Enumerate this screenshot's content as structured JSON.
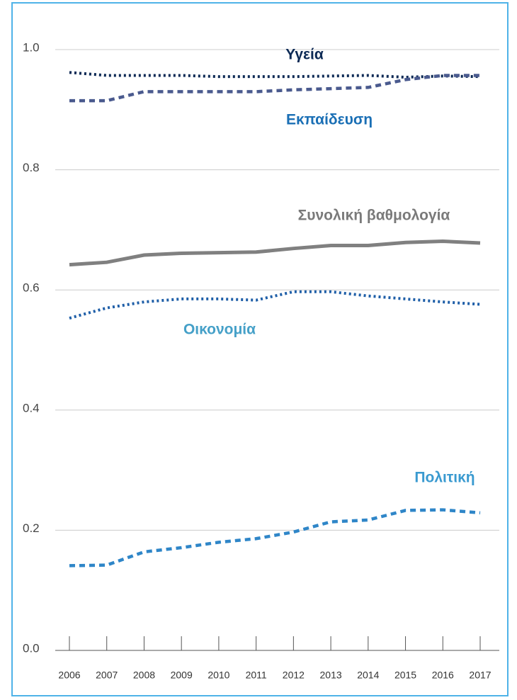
{
  "chart_data": {
    "type": "line",
    "categories": [
      "2006",
      "2007",
      "2008",
      "2009",
      "2010",
      "2011",
      "2012",
      "2013",
      "2014",
      "2015",
      "2016",
      "2017"
    ],
    "ylim": [
      0,
      1
    ],
    "yticks": [
      {
        "value": 0,
        "label": "0.0"
      },
      0.2,
      0.4,
      0.6,
      0.8,
      {
        "value": 1,
        "label": "1.0"
      }
    ],
    "grid": true,
    "series": [
      {
        "name": "Υγεία",
        "color": "#0d2a55",
        "label_color": "#0d2a55",
        "style": "dotted",
        "values": [
          0.962,
          0.957,
          0.957,
          0.957,
          0.955,
          0.955,
          0.955,
          0.956,
          0.957,
          0.954,
          0.956,
          0.955
        ]
      },
      {
        "name": "Εκπαίδευση",
        "color": "#4a5a8e",
        "label_color": "#1a6fb5",
        "style": "dashed",
        "values": [
          0.915,
          0.915,
          0.93,
          0.93,
          0.93,
          0.93,
          0.933,
          0.935,
          0.937,
          0.95,
          0.957,
          0.957
        ]
      },
      {
        "name": "Συνολική βαθμολογία",
        "color": "#808080",
        "label_color": "#7a7a7a",
        "style": "solid",
        "values": [
          0.642,
          0.646,
          0.658,
          0.661,
          0.662,
          0.663,
          0.669,
          0.674,
          0.674,
          0.679,
          0.681,
          0.678
        ]
      },
      {
        "name": "Οικονομία",
        "color": "#1f5fa8",
        "label_color": "#45a0c8",
        "style": "dotted",
        "values": [
          0.553,
          0.57,
          0.58,
          0.585,
          0.585,
          0.583,
          0.597,
          0.597,
          0.59,
          0.585,
          0.58,
          0.576
        ]
      },
      {
        "name": "Πολιτική",
        "color": "#2f86c8",
        "label_color": "#3a9ad0",
        "style": "dashed",
        "values": [
          0.141,
          0.142,
          0.164,
          0.171,
          0.18,
          0.186,
          0.197,
          0.214,
          0.217,
          0.233,
          0.234,
          0.229
        ]
      }
    ]
  }
}
